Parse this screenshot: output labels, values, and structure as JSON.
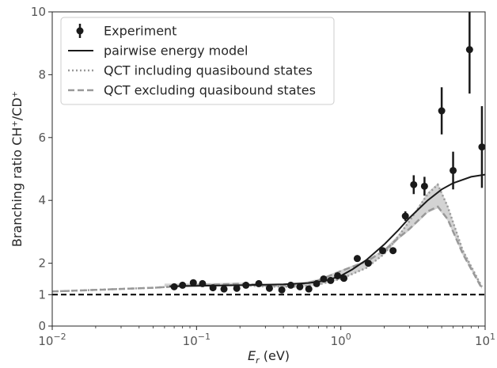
{
  "chart_data": {
    "type": "scatter",
    "x_scale": "log",
    "y_scale": "linear",
    "xlim": [
      0.01,
      10
    ],
    "ylim": [
      0,
      10
    ],
    "xlabel": "E_r (eV)",
    "ylabel": "Branching ratio CH⁺/CD⁺",
    "x_ticks": [
      {
        "value": 0.01,
        "base": "10",
        "exp": "−2"
      },
      {
        "value": 0.1,
        "base": "10",
        "exp": "−1"
      },
      {
        "value": 1,
        "base": "10",
        "exp": "0"
      },
      {
        "value": 10,
        "base": "10",
        "exp": "1"
      }
    ],
    "y_ticks": [
      0,
      1,
      2,
      4,
      6,
      8,
      10
    ],
    "grid": false,
    "legend_position": "top-left",
    "legend": [
      {
        "label": "Experiment",
        "style": "errorbar-marker"
      },
      {
        "label": "pairwise energy model",
        "style": "solid"
      },
      {
        "label": "QCT including quasibound states",
        "style": "dotted"
      },
      {
        "label": "QCT excluding quasibound states",
        "style": "dashed"
      }
    ],
    "colors": {
      "experiment": "#1a1a1a",
      "model": "#1a1a1a",
      "qct_including": "#999999",
      "qct_excluding": "#999999",
      "band_fill": "#d3d3d3",
      "reference_line": "#000000"
    },
    "series": [
      {
        "name": "Experiment",
        "kind": "errorbar",
        "points": [
          {
            "x": 0.07,
            "y": 1.25
          },
          {
            "x": 0.08,
            "y": 1.3
          },
          {
            "x": 0.095,
            "y": 1.38
          },
          {
            "x": 0.11,
            "y": 1.35
          },
          {
            "x": 0.13,
            "y": 1.22
          },
          {
            "x": 0.155,
            "y": 1.18
          },
          {
            "x": 0.19,
            "y": 1.2
          },
          {
            "x": 0.22,
            "y": 1.3
          },
          {
            "x": 0.27,
            "y": 1.35
          },
          {
            "x": 0.32,
            "y": 1.2
          },
          {
            "x": 0.39,
            "y": 1.15
          },
          {
            "x": 0.45,
            "y": 1.3
          },
          {
            "x": 0.52,
            "y": 1.25
          },
          {
            "x": 0.6,
            "y": 1.18
          },
          {
            "x": 0.68,
            "y": 1.35
          },
          {
            "x": 0.76,
            "y": 1.5
          },
          {
            "x": 0.85,
            "y": 1.45
          },
          {
            "x": 0.95,
            "y": 1.6,
            "err": 0.1
          },
          {
            "x": 1.05,
            "y": 1.52
          },
          {
            "x": 1.3,
            "y": 2.15
          },
          {
            "x": 1.55,
            "y": 2.0
          },
          {
            "x": 1.95,
            "y": 2.4
          },
          {
            "x": 2.3,
            "y": 2.4
          },
          {
            "x": 2.8,
            "y": 3.5,
            "err": 0.15
          },
          {
            "x": 3.2,
            "y": 4.5,
            "err": 0.3
          },
          {
            "x": 3.8,
            "y": 4.45,
            "err": 0.3
          },
          {
            "x": 5.0,
            "y": 6.85,
            "err": 0.75
          },
          {
            "x": 6.0,
            "y": 4.95,
            "err": 0.6
          },
          {
            "x": 7.8,
            "y": 8.8,
            "err": 1.4
          },
          {
            "x": 9.5,
            "y": 5.7,
            "err": 1.3
          }
        ]
      },
      {
        "name": "pairwise energy model",
        "kind": "line",
        "x": [
          0.065,
          0.1,
          0.2,
          0.4,
          0.6,
          0.8,
          1.0,
          1.2,
          1.5,
          2.0,
          2.5,
          3.0,
          4.0,
          5.0,
          6.0,
          8.0,
          10.0
        ],
        "y": [
          1.27,
          1.28,
          1.3,
          1.33,
          1.37,
          1.45,
          1.6,
          1.8,
          2.1,
          2.6,
          3.05,
          3.45,
          4.0,
          4.35,
          4.55,
          4.75,
          4.82
        ]
      },
      {
        "name": "QCT including quasibound states",
        "kind": "line",
        "x": [
          0.01,
          0.02,
          0.05,
          0.1,
          0.2,
          0.3,
          0.5,
          0.7,
          1.0,
          1.5,
          2.0,
          2.5,
          3.0,
          4.0,
          4.7,
          5.5,
          7.0,
          9.5
        ],
        "y": [
          1.1,
          1.15,
          1.22,
          1.3,
          1.3,
          1.26,
          1.25,
          1.32,
          1.5,
          1.85,
          2.3,
          2.85,
          3.35,
          4.2,
          4.5,
          3.8,
          2.4,
          1.25
        ]
      },
      {
        "name": "QCT excluding quasibound states",
        "kind": "line",
        "x": [
          0.01,
          0.02,
          0.05,
          0.1,
          0.2,
          0.3,
          0.5,
          0.7,
          1.0,
          1.5,
          2.0,
          2.5,
          3.0,
          4.0,
          4.7,
          5.5,
          7.0,
          9.5
        ],
        "y": [
          1.1,
          1.15,
          1.22,
          1.3,
          1.35,
          1.3,
          1.3,
          1.45,
          1.75,
          2.05,
          2.4,
          2.8,
          3.1,
          3.65,
          3.8,
          3.4,
          2.3,
          1.2
        ]
      },
      {
        "name": "QCT band",
        "kind": "band",
        "x": [
          0.06,
          0.1,
          0.2,
          0.3,
          0.5,
          0.7,
          1.0,
          1.5,
          2.0,
          2.5,
          3.0,
          4.0,
          4.7,
          5.5,
          7.0,
          9.5
        ],
        "lower": [
          1.25,
          1.28,
          1.28,
          1.24,
          1.23,
          1.3,
          1.48,
          1.83,
          2.28,
          2.75,
          3.05,
          3.6,
          3.75,
          3.35,
          2.25,
          1.18
        ],
        "upper": [
          1.35,
          1.36,
          1.38,
          1.34,
          1.35,
          1.5,
          1.78,
          2.1,
          2.45,
          2.9,
          3.4,
          4.25,
          4.55,
          3.85,
          2.45,
          1.28
        ]
      },
      {
        "name": "reference y = 1",
        "kind": "hline",
        "y": 1
      }
    ]
  }
}
